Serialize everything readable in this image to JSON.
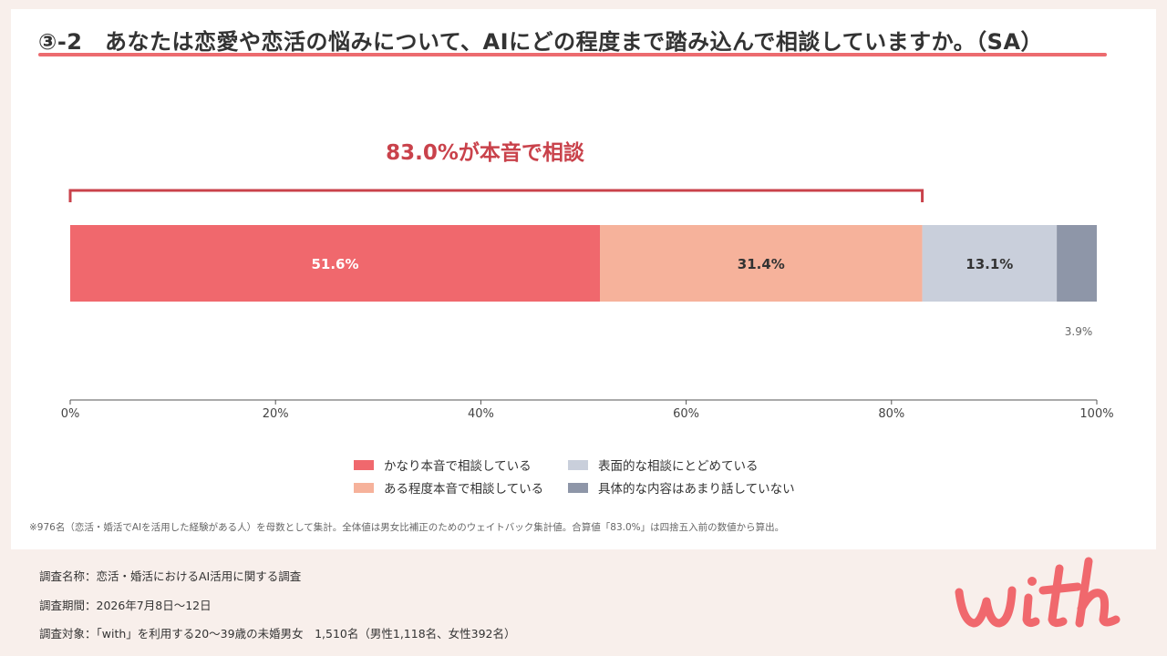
{
  "header": {
    "title": "③-2　あなたは恋愛や恋活の悩みについて、AIにどの程度まで踏み込んで相談していますか。（SA）"
  },
  "callout": {
    "text": "83.0%が本音で相談",
    "value": 83.0
  },
  "chart_data": {
    "type": "bar",
    "orientation": "horizontal-stacked",
    "title": "",
    "xlabel": "",
    "ylabel": "",
    "xlim": [
      0,
      100
    ],
    "x_ticks": [
      "0%",
      "20%",
      "40%",
      "60%",
      "80%",
      "100%"
    ],
    "grid": false,
    "legend_position": "bottom",
    "series": [
      {
        "name": "かなり本音で相談している",
        "value": 51.6,
        "label": "51.6%",
        "color": "#f0686d",
        "label_color": "#ffffff"
      },
      {
        "name": "ある程度本音で相談している",
        "value": 31.4,
        "label": "31.4%",
        "color": "#f6b29b",
        "label_color": "#333333"
      },
      {
        "name": "表面的な相談にとどめている",
        "value": 13.1,
        "label": "13.1%",
        "color": "#c9cfdb",
        "label_color": "#333333"
      },
      {
        "name": "具体的な内容はあまり話していない",
        "value": 3.9,
        "label": "3.9%",
        "color": "#8e96a8",
        "label_color": "#666666"
      }
    ]
  },
  "footnote": "※976名（恋活・婚活でAIを活用した経験がある人）を母数として集計。全体値は男女比補正のためのウェイトバック集計値。合算値「83.0%」は四捨五入前の数値から算出。",
  "survey": {
    "name": "調査名称：恋活・婚活におけるAI活用に関する調査",
    "period": "調査期間：2026年7月8日〜12日",
    "target": "調査対象：「with」を利用する20〜39歳の未婚男女　1,510名（男性1,118名、女性392名）"
  },
  "logo": {
    "text": "with",
    "color": "#f0686d"
  },
  "colors": {
    "accent": "#ec6b6f",
    "callout": "#c9424b",
    "background": "#f8efeb"
  }
}
